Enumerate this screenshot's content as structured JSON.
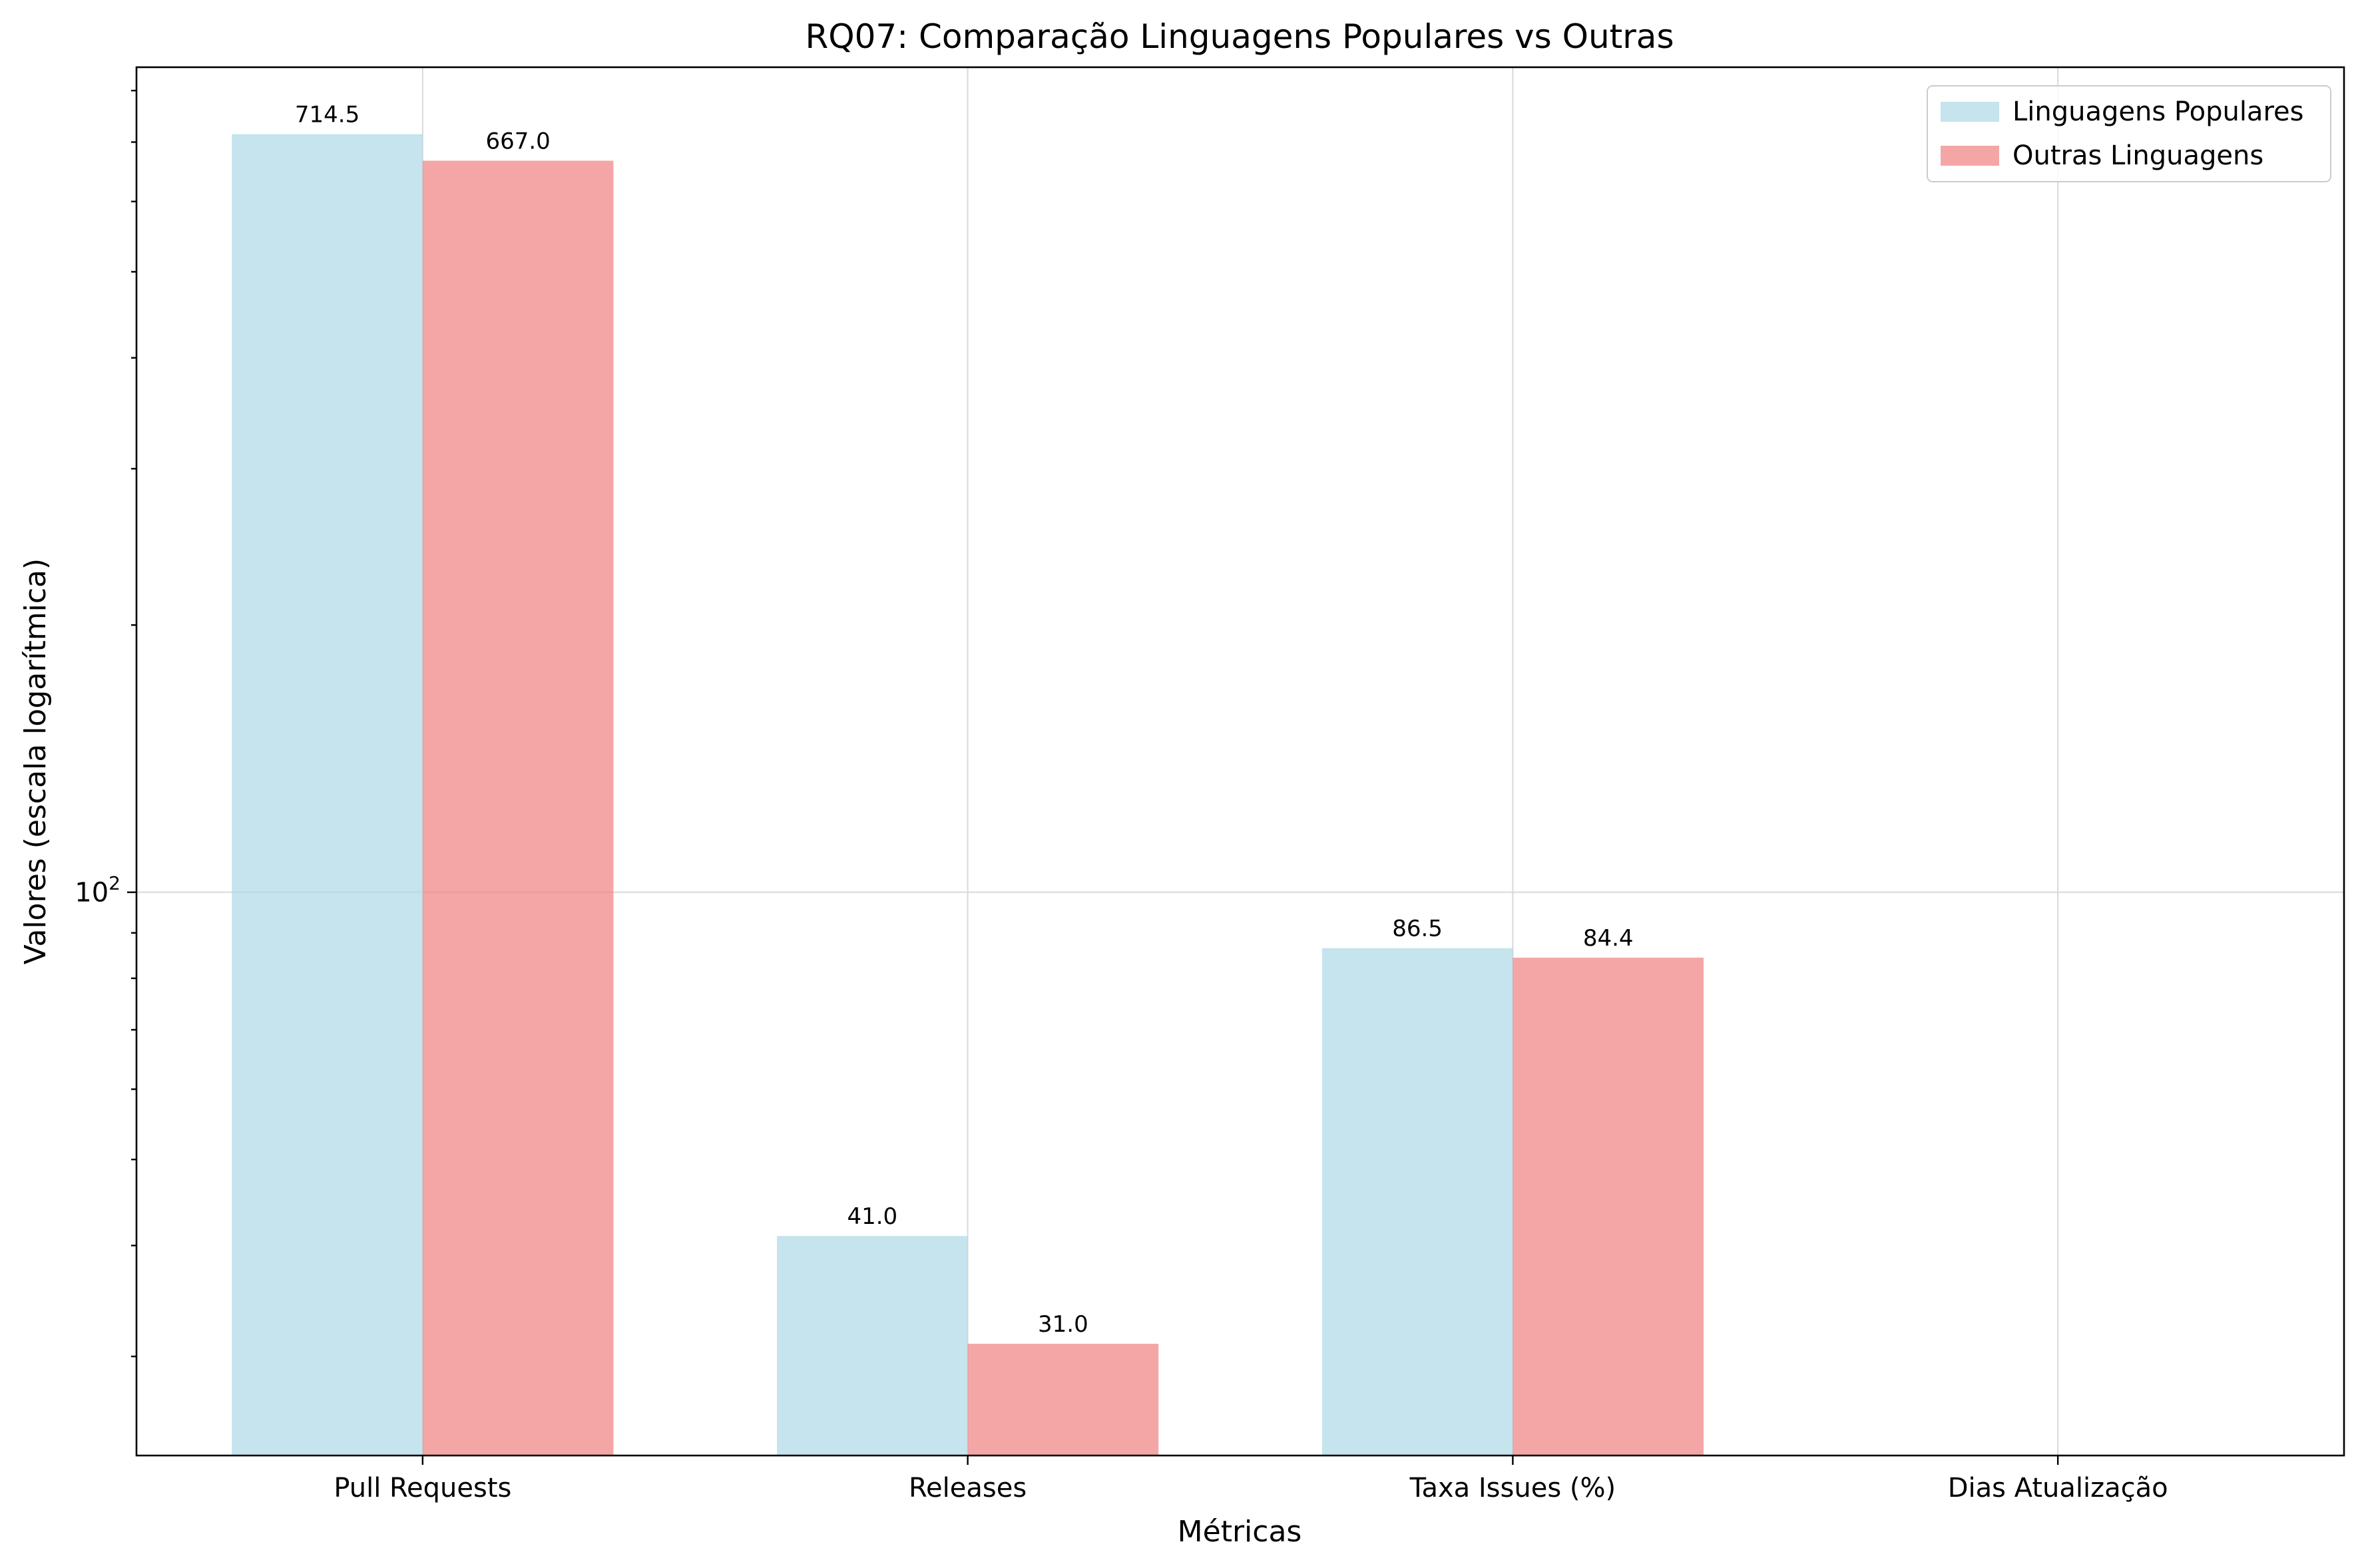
{
  "chart_data": {
    "type": "bar",
    "title": "RQ07: Comparação Linguagens Populares vs Outras",
    "xlabel": "Métricas",
    "ylabel": "Valores (escala logarítmica)",
    "yscale": "log",
    "ylim": [
      23.2,
      850
    ],
    "y_major_tick_label": {
      "base": "10",
      "exponent": "2",
      "value": 100
    },
    "grid": true,
    "legend_position": "top-right",
    "categories": [
      "Pull Requests",
      "Releases",
      "Taxa Issues (%)",
      "Dias Atualização"
    ],
    "series": [
      {
        "name": "Linguagens Populares",
        "color": "#add8e6",
        "values": [
          714.5,
          41.0,
          86.5,
          null
        ],
        "labels": [
          "714.5",
          "41.0",
          "86.5",
          null
        ]
      },
      {
        "name": "Outras Linguagens",
        "color": "#f08080",
        "values": [
          667.0,
          31.0,
          84.4,
          null
        ],
        "labels": [
          "667.0",
          "31.0",
          "84.4",
          null
        ]
      }
    ]
  }
}
